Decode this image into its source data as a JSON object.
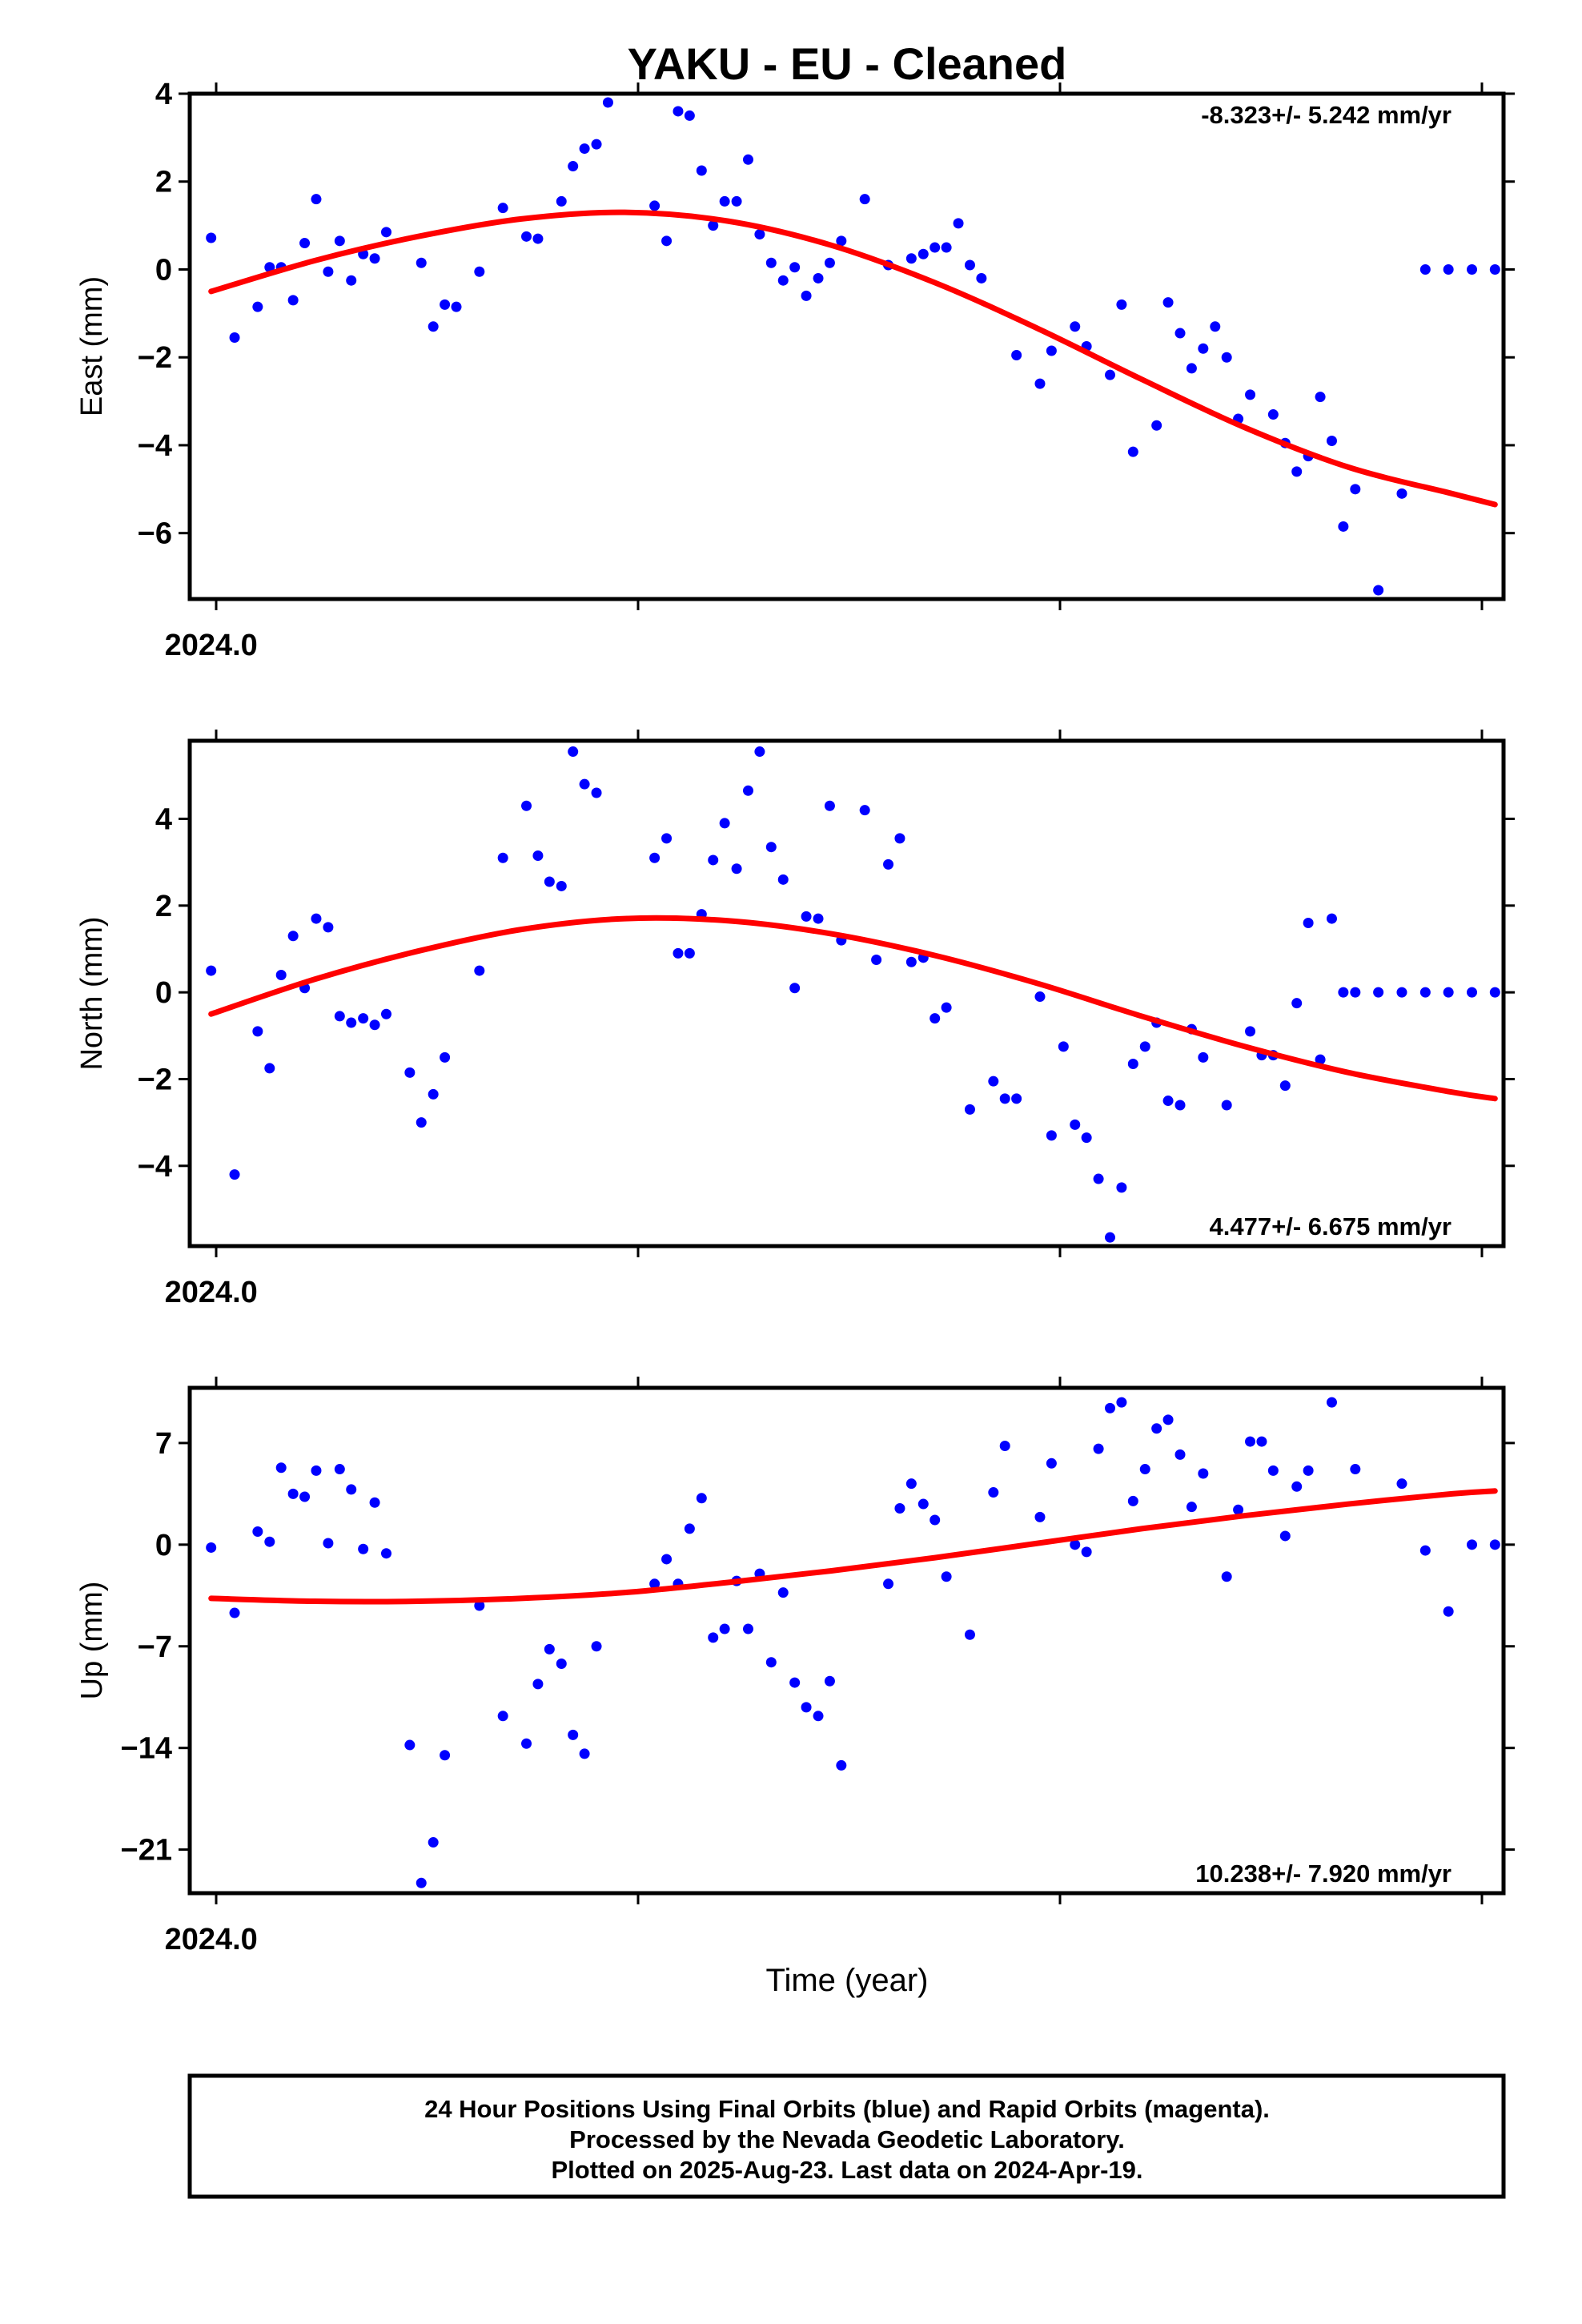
{
  "title": "YAKU  - EU - Cleaned",
  "xlabel": "Time (year)",
  "footer": {
    "line1": "24 Hour Positions Using Final Orbits (blue) and Rapid Orbits (magenta).",
    "line2": "Processed by the Nevada Geodetic Laboratory.",
    "line3": "Plotted on 2025-Aug-23. Last data on 2024-Apr-19."
  },
  "colors": {
    "points": "#0000ff",
    "fit": "#ff0000",
    "frame": "#000000"
  },
  "chart_data": [
    {
      "type": "scatter",
      "name": "east",
      "ylabel": "East (mm)",
      "xlim": [
        2023.995,
        2024.3025
      ],
      "ylim": [
        -7.5,
        4.0
      ],
      "yticks": [
        4,
        2,
        0,
        -2,
        -4,
        -6
      ],
      "ytick_labels": [
        "4",
        "2",
        "0",
        "−2",
        "−4",
        "−6"
      ],
      "xtick_label": "2024.0",
      "rate_text": "-8.323+/- 5.242 mm/yr",
      "x": [
        2024.0,
        2024.0055,
        2024.0109,
        2024.0137,
        2024.0164,
        2024.0192,
        2024.0219,
        2024.0246,
        2024.0274,
        2024.0301,
        2024.0328,
        2024.0356,
        2024.0383,
        2024.041,
        2024.0492,
        2024.052,
        2024.0547,
        2024.0574,
        2024.0628,
        2024.0683,
        2024.0738,
        2024.0765,
        2024.082,
        2024.0847,
        2024.0874,
        2024.0902,
        2024.0929,
        2024.1038,
        2024.1066,
        2024.1093,
        2024.112,
        2024.1148,
        2024.1175,
        2024.1202,
        2024.123,
        2024.1257,
        2024.1284,
        2024.1311,
        2024.1339,
        2024.1366,
        2024.1393,
        2024.1421,
        2024.1448,
        2024.1475,
        2024.153,
        2024.1585,
        2024.1639,
        2024.1667,
        2024.1694,
        2024.1721,
        2024.1749,
        2024.1776,
        2024.1803,
        2024.1885,
        2024.194,
        2024.1967,
        2024.2022,
        2024.2049,
        2024.2104,
        2024.2131,
        2024.2158,
        2024.2213,
        2024.224,
        2024.2268,
        2024.2295,
        2024.2322,
        2024.235,
        2024.2377,
        2024.2404,
        2024.2432,
        2024.2486,
        2024.2514,
        2024.2541,
        2024.2568,
        2024.2596,
        2024.2623,
        2024.265,
        2024.2678,
        2024.2732,
        2024.2787,
        2024.2842,
        2024.2896,
        2024.2951,
        2024.3005
      ],
      "y": [
        0.72,
        -1.55,
        -0.85,
        0.05,
        0.05,
        -0.7,
        0.6,
        1.6,
        -0.05,
        0.65,
        -0.25,
        0.35,
        0.25,
        0.85,
        0.15,
        -1.3,
        -0.8,
        -0.85,
        -0.05,
        1.4,
        0.75,
        0.7,
        1.55,
        2.35,
        2.75,
        2.85,
        3.8,
        1.45,
        0.65,
        3.6,
        3.5,
        2.25,
        1.0,
        1.55,
        1.55,
        2.5,
        0.8,
        0.15,
        -0.25,
        0.05,
        -0.6,
        -0.2,
        0.15,
        0.65,
        1.6,
        0.1,
        0.25,
        0.35,
        0.5,
        0.5,
        1.05,
        0.1,
        -0.2,
        -1.95,
        -2.6,
        -1.85,
        -1.3,
        -1.75,
        -2.4,
        -0.8,
        -4.15,
        -3.55,
        -0.75,
        -1.45,
        -2.25,
        -1.8,
        -1.3,
        -2.0,
        -3.4,
        -2.85,
        -3.3,
        -3.95,
        -4.6,
        -4.25,
        -2.9,
        -3.9,
        -5.85,
        -5.0,
        -7.3,
        -5.1,
        0.0,
        0.0,
        0.0,
        0.0
      ],
      "fit": {
        "x": [
          2024.0,
          2024.0242,
          2024.0484,
          2024.0726,
          2024.0968,
          2024.121,
          2024.1452,
          2024.1694,
          2024.1936,
          2024.2178,
          2024.242,
          2024.2662,
          2024.2904,
          2024.3005
        ],
        "y": [
          -0.5,
          0.2,
          0.75,
          1.15,
          1.3,
          1.1,
          0.55,
          -0.3,
          -1.35,
          -2.5,
          -3.6,
          -4.5,
          -5.1,
          -5.35
        ]
      }
    },
    {
      "type": "scatter",
      "name": "north",
      "ylabel": "North (mm)",
      "xlim": [
        2023.995,
        2024.3025
      ],
      "ylim": [
        -5.85,
        5.8
      ],
      "yticks": [
        4,
        2,
        0,
        -2,
        -4
      ],
      "ytick_labels": [
        "4",
        "2",
        "0",
        "−2",
        "−4"
      ],
      "xtick_label": "2024.0",
      "rate_text": "4.477+/- 6.675 mm/yr",
      "x": [
        2024.0,
        2024.0055,
        2024.0109,
        2024.0137,
        2024.0164,
        2024.0192,
        2024.0219,
        2024.0246,
        2024.0274,
        2024.0301,
        2024.0328,
        2024.0356,
        2024.0383,
        2024.041,
        2024.0465,
        2024.0492,
        2024.052,
        2024.0547,
        2024.0628,
        2024.0683,
        2024.0738,
        2024.0765,
        2024.0792,
        2024.082,
        2024.0847,
        2024.0874,
        2024.0902,
        2024.1038,
        2024.1066,
        2024.1093,
        2024.112,
        2024.1148,
        2024.1175,
        2024.1202,
        2024.123,
        2024.1257,
        2024.1284,
        2024.1311,
        2024.1339,
        2024.1366,
        2024.1393,
        2024.1421,
        2024.1448,
        2024.1475,
        2024.153,
        2024.1557,
        2024.1585,
        2024.1612,
        2024.1639,
        2024.1667,
        2024.1694,
        2024.1721,
        2024.1776,
        2024.1831,
        2024.1858,
        2024.1885,
        2024.194,
        2024.1967,
        2024.1995,
        2024.2022,
        2024.2049,
        2024.2077,
        2024.2104,
        2024.2131,
        2024.2158,
        2024.2186,
        2024.2213,
        2024.224,
        2024.2268,
        2024.2295,
        2024.2322,
        2024.2377,
        2024.2432,
        2024.2459,
        2024.2486,
        2024.2514,
        2024.2541,
        2024.2568,
        2024.2596,
        2024.2623,
        2024.265,
        2024.2678,
        2024.2732,
        2024.2787,
        2024.2842,
        2024.2896,
        2024.2951,
        2024.3005
      ],
      "y": [
        0.5,
        -4.2,
        -0.9,
        -1.75,
        0.4,
        1.3,
        0.1,
        1.7,
        1.5,
        -0.55,
        -0.7,
        -0.6,
        -0.75,
        -0.5,
        -1.85,
        -3.0,
        -2.35,
        -1.5,
        0.5,
        3.1,
        4.3,
        3.15,
        2.55,
        2.45,
        5.55,
        4.8,
        4.6,
        3.1,
        3.55,
        0.9,
        0.9,
        1.8,
        3.05,
        3.9,
        2.85,
        4.65,
        5.55,
        3.35,
        2.6,
        0.1,
        1.75,
        1.7,
        4.3,
        1.2,
        4.2,
        0.75,
        2.95,
        3.55,
        0.7,
        0.8,
        -0.6,
        -0.35,
        -2.7,
        -2.05,
        -2.45,
        -2.45,
        -0.1,
        -3.3,
        -1.25,
        -3.05,
        -3.35,
        -4.3,
        -5.65,
        -4.5,
        -1.65,
        -1.25,
        -0.7,
        -2.5,
        -2.6,
        -0.85,
        -1.5,
        -2.6,
        -0.9,
        -1.45,
        -1.45,
        -2.15,
        -0.25,
        1.6,
        -1.55,
        1.7,
        0.0,
        0.0,
        0.0,
        0.0,
        0.0,
        0.0,
        0.0,
        0.0
      ],
      "fit": {
        "x": [
          2024.0,
          2024.0242,
          2024.0484,
          2024.0726,
          2024.0968,
          2024.121,
          2024.1452,
          2024.1694,
          2024.1936,
          2024.2178,
          2024.242,
          2024.2662,
          2024.2904,
          2024.3005
        ],
        "y": [
          -0.5,
          0.3,
          0.95,
          1.45,
          1.7,
          1.65,
          1.35,
          0.85,
          0.2,
          -0.55,
          -1.25,
          -1.85,
          -2.3,
          -2.45
        ]
      }
    },
    {
      "type": "scatter",
      "name": "up",
      "ylabel": "Up (mm)",
      "xlim": [
        2023.995,
        2024.3025
      ],
      "ylim": [
        -24.0,
        10.8
      ],
      "yticks": [
        7,
        0,
        -7,
        -14,
        -21
      ],
      "ytick_labels": [
        "7",
        "0",
        "−7",
        "−14",
        "−21"
      ],
      "xtick_label": "2024.0",
      "rate_text": "10.238+/- 7.920 mm/yr",
      "x": [
        2024.0,
        2024.0055,
        2024.0109,
        2024.0137,
        2024.0164,
        2024.0192,
        2024.0219,
        2024.0246,
        2024.0274,
        2024.0301,
        2024.0328,
        2024.0356,
        2024.0383,
        2024.041,
        2024.0465,
        2024.0492,
        2024.052,
        2024.0547,
        2024.0628,
        2024.0683,
        2024.0738,
        2024.0765,
        2024.0792,
        2024.082,
        2024.0847,
        2024.0874,
        2024.0902,
        2024.1038,
        2024.1066,
        2024.1093,
        2024.112,
        2024.1148,
        2024.1175,
        2024.1202,
        2024.123,
        2024.1257,
        2024.1284,
        2024.1311,
        2024.1339,
        2024.1366,
        2024.1393,
        2024.1421,
        2024.1448,
        2024.1475,
        2024.1585,
        2024.1612,
        2024.1639,
        2024.1667,
        2024.1694,
        2024.1721,
        2024.1776,
        2024.1831,
        2024.1858,
        2024.194,
        2024.1967,
        2024.2022,
        2024.2049,
        2024.2077,
        2024.2104,
        2024.2131,
        2024.2158,
        2024.2186,
        2024.2213,
        2024.224,
        2024.2268,
        2024.2295,
        2024.2322,
        2024.2377,
        2024.2404,
        2024.2432,
        2024.2459,
        2024.2486,
        2024.2514,
        2024.2541,
        2024.2568,
        2024.2623,
        2024.2678,
        2024.2787,
        2024.2842,
        2024.2896,
        2024.2951,
        2024.3005
      ],
      "y": [
        -0.2,
        -4.7,
        0.9,
        0.2,
        5.3,
        3.5,
        3.3,
        5.1,
        0.1,
        5.2,
        3.8,
        -0.3,
        2.9,
        -0.6,
        -13.8,
        -23.3,
        -20.5,
        -14.5,
        -4.2,
        -11.8,
        -13.7,
        -9.6,
        -7.2,
        -8.2,
        -13.1,
        -14.4,
        -7.0,
        -2.7,
        -1.0,
        -2.7,
        1.1,
        3.2,
        -6.4,
        -5.8,
        -2.5,
        -5.8,
        -2.0,
        -8.1,
        -3.3,
        -9.5,
        -11.2,
        -11.8,
        -9.4,
        -15.2,
        -2.7,
        2.5,
        4.2,
        2.8,
        1.7,
        -2.2,
        -6.2,
        3.6,
        6.8,
        1.9,
        5.6,
        0.0,
        -0.5,
        6.6,
        9.4,
        9.8,
        3.0,
        5.2,
        8.0,
        8.6,
        6.2,
        2.6,
        4.9,
        -2.2,
        2.4,
        7.1,
        7.1,
        5.1,
        0.6,
        4.0,
        5.1,
        9.8,
        5.2,
        4.2,
        -0.4,
        -4.6,
        0.0,
        0.0
      ],
      "fit": {
        "x": [
          2024.0,
          2024.0242,
          2024.0484,
          2024.0726,
          2024.0968,
          2024.121,
          2024.1452,
          2024.1694,
          2024.1936,
          2024.2178,
          2024.242,
          2024.2662,
          2024.2904,
          2024.3005
        ],
        "y": [
          -3.7,
          -3.9,
          -3.9,
          -3.7,
          -3.3,
          -2.6,
          -1.8,
          -0.9,
          0.1,
          1.1,
          2.0,
          2.8,
          3.5,
          3.7
        ]
      }
    }
  ]
}
